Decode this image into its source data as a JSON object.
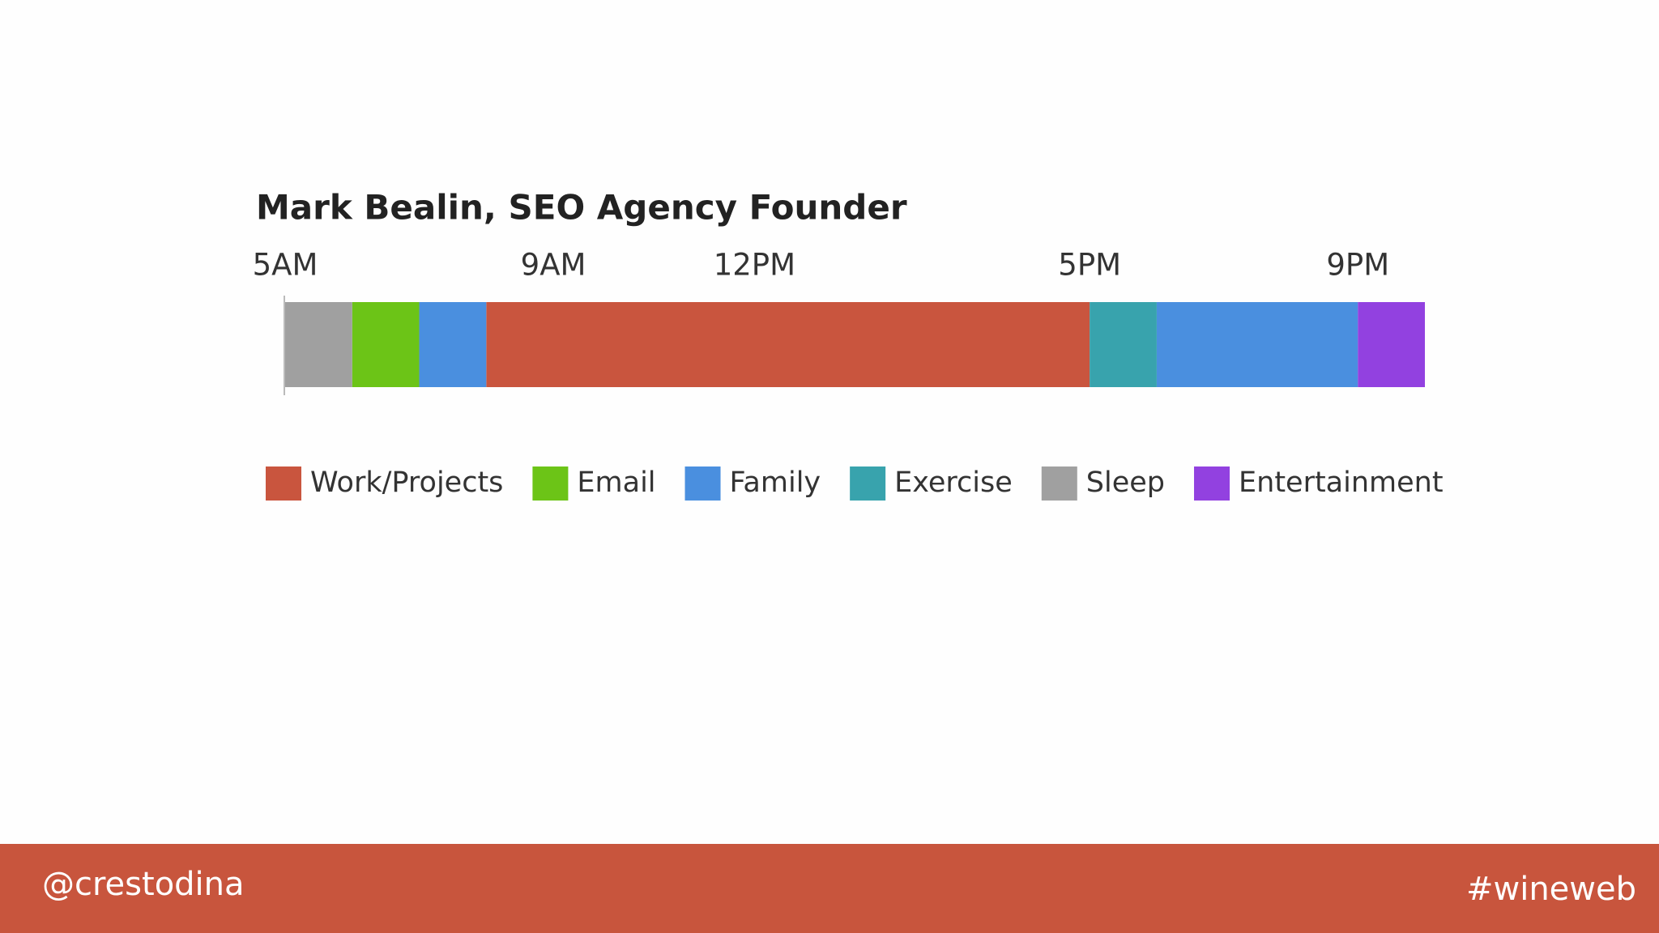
{
  "chart_data": {
    "type": "timeline",
    "title": "Mark Bealin, SEO Agency Founder",
    "xlim": [
      5,
      22
    ],
    "xticks": [
      {
        "value": 5,
        "label": "5AM"
      },
      {
        "value": 9,
        "label": "9AM"
      },
      {
        "value": 12,
        "label": "12PM"
      },
      {
        "value": 17,
        "label": "5PM"
      },
      {
        "value": 21,
        "label": "9PM"
      }
    ],
    "series": [
      {
        "name": "Work/Projects",
        "color": "#c9553e",
        "intervals": [
          [
            8,
            17
          ]
        ]
      },
      {
        "name": "Email",
        "color": "#6cc417",
        "intervals": [
          [
            6,
            7
          ]
        ]
      },
      {
        "name": "Family",
        "color": "#4a8fdf",
        "intervals": [
          [
            7,
            8
          ],
          [
            18,
            21
          ]
        ]
      },
      {
        "name": "Exercise",
        "color": "#38a3ad",
        "intervals": [
          [
            17,
            18
          ]
        ]
      },
      {
        "name": "Sleep",
        "color": "#a0a0a0",
        "intervals": [
          [
            5,
            6
          ]
        ]
      },
      {
        "name": "Entertainment",
        "color": "#9241e0",
        "intervals": [
          [
            21,
            22
          ]
        ]
      }
    ]
  },
  "footer": {
    "handle": "@crestodina",
    "hashtag": "#wineweb"
  }
}
